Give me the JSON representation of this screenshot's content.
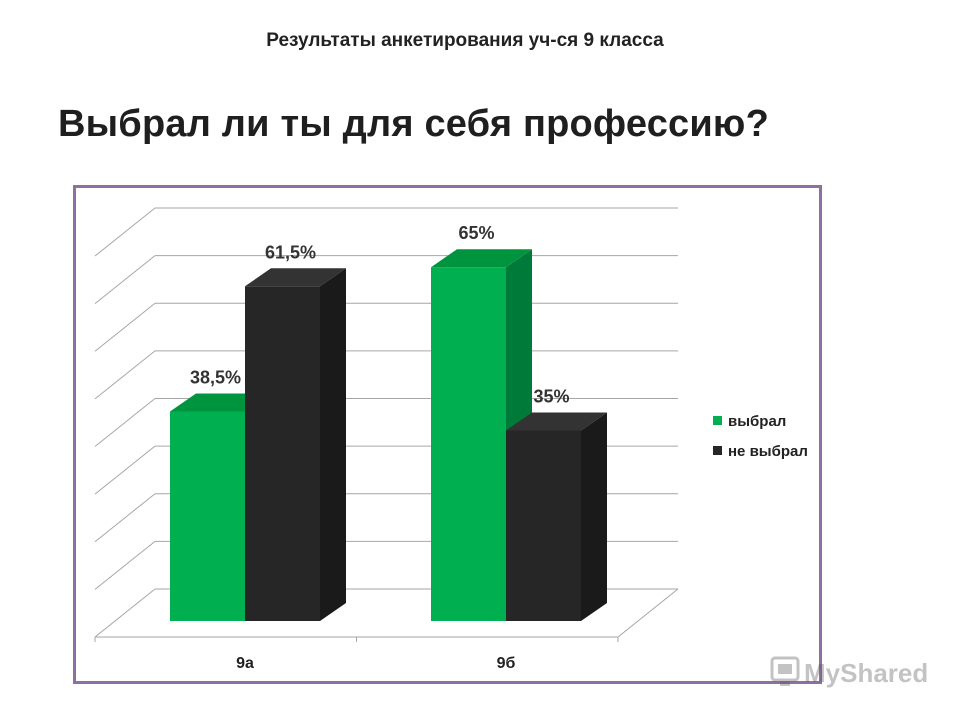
{
  "page": {
    "subtitle": "Результаты анкетирования уч-ся 9 класса",
    "title": "Выбрал ли ты для себя профессию?",
    "watermark": "MyShared"
  },
  "chart_data": {
    "type": "bar",
    "style": "3d-clustered",
    "title": "",
    "xlabel": "",
    "ylabel": "",
    "categories": [
      "9а",
      "9б"
    ],
    "series": [
      {
        "name": "выбрал",
        "values": [
          38.5,
          65
        ],
        "labels": [
          "38,5%",
          "65%"
        ],
        "color": "#00b050",
        "side_color": "#007a38",
        "top_color": "#00943f"
      },
      {
        "name": "не выбрал",
        "values": [
          61.5,
          35
        ],
        "labels": [
          "61,5%",
          "35%"
        ],
        "color": "#262626",
        "side_color": "#1a1a1a",
        "top_color": "#333333"
      }
    ],
    "ylim": [
      0,
      70
    ],
    "y_axis_labels_shown": false,
    "grid": true,
    "legend_position": "right"
  }
}
